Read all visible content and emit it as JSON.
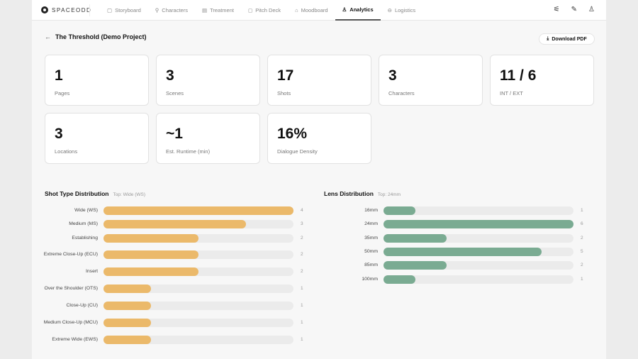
{
  "app": {
    "brand": "SPACEODD"
  },
  "nav": {
    "tabs": [
      {
        "label": "Storyboard",
        "icon": "▢"
      },
      {
        "label": "Characters",
        "icon": "⚲"
      },
      {
        "label": "Treatment",
        "icon": "▤"
      },
      {
        "label": "Pitch Deck",
        "icon": "◻"
      },
      {
        "label": "Moodboard",
        "icon": "⌂"
      },
      {
        "label": "Analytics",
        "icon": "♙",
        "active": true
      },
      {
        "label": "Logistics",
        "icon": "⊖"
      }
    ],
    "icons": [
      "settings-sliders-icon",
      "pencil-icon",
      "user-icon"
    ]
  },
  "header": {
    "title": "The Threshold (Demo Project)",
    "download": "Download PDF"
  },
  "stats": [
    {
      "value": "1",
      "label": "Pages"
    },
    {
      "value": "3",
      "label": "Scenes"
    },
    {
      "value": "17",
      "label": "Shots"
    },
    {
      "value": "3",
      "label": "Characters"
    },
    {
      "value": "11 / 6",
      "label": "INT / EXT"
    },
    {
      "value": "3",
      "label": "Locations"
    },
    {
      "value": "~1",
      "label": "Est. Runtime (min)"
    },
    {
      "value": "16%",
      "label": "Dialogue Density"
    }
  ],
  "shot_types": {
    "title": "Shot Type Distribution",
    "subtitle": "Top: Wide (WS)",
    "color": "#ebb96a",
    "max": 4,
    "items": [
      {
        "label": "Wide (WS)",
        "value": 4
      },
      {
        "label": "Medium (MS)",
        "value": 3
      },
      {
        "label": "Establishing",
        "value": 2
      },
      {
        "label": "Extreme Close-Up (ECU)",
        "value": 2
      },
      {
        "label": "Insert",
        "value": 2
      },
      {
        "label": "Over the Shoulder (OTS)",
        "value": 1
      },
      {
        "label": "Close-Up (CU)",
        "value": 1
      },
      {
        "label": "Medium Close-Up (MCU)",
        "value": 1
      },
      {
        "label": "Extreme Wide (EWS)",
        "value": 1
      }
    ]
  },
  "lenses": {
    "title": "Lens Distribution",
    "subtitle": "Top: 24mm",
    "color": "#7aab92",
    "max": 6,
    "items": [
      {
        "label": "16mm",
        "value": 1
      },
      {
        "label": "24mm",
        "value": 6
      },
      {
        "label": "35mm",
        "value": 2
      },
      {
        "label": "50mm",
        "value": 5
      },
      {
        "label": "85mm",
        "value": 2
      },
      {
        "label": "100mm",
        "value": 1
      }
    ]
  }
}
